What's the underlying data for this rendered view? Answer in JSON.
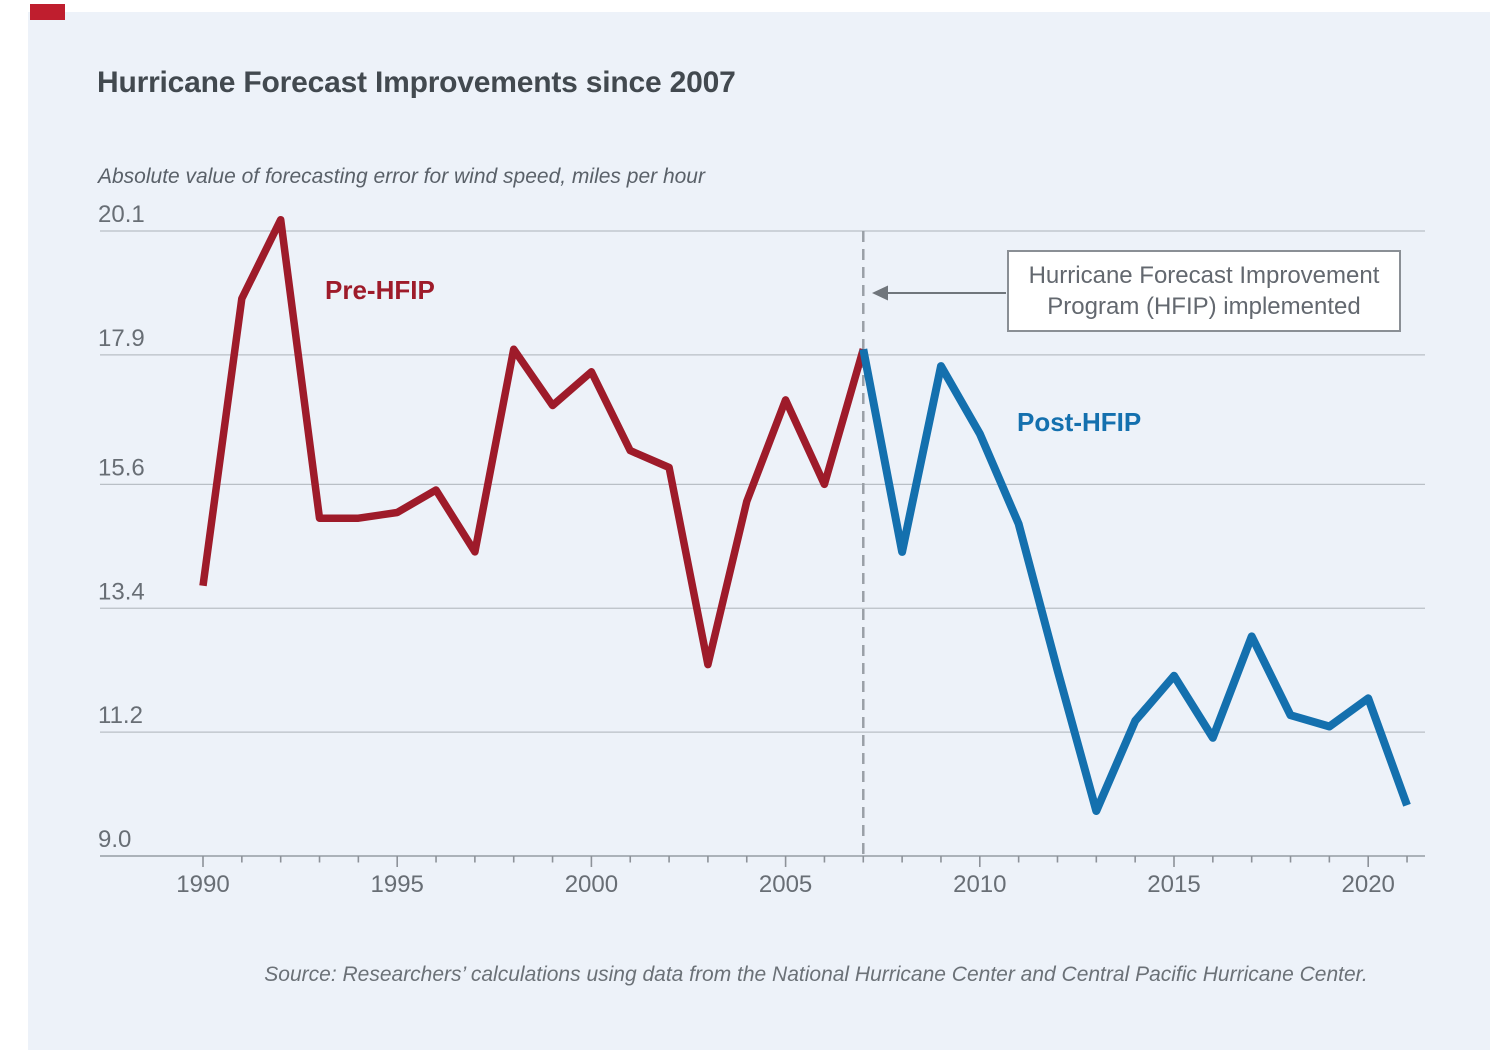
{
  "chart_data": {
    "type": "line",
    "title": "Hurricane Forecast Improvements since 2007",
    "subtitle": "Absolute value of forecasting error for wind speed, miles per hour",
    "source": "Source: Researchers’ calculations using data from the National Hurricane Center and Central Pacific Hurricane Center.",
    "x_range": [
      1990,
      2021
    ],
    "ylim": [
      9.0,
      20.1
    ],
    "y_tick_labels": [
      "20.1",
      "17.9",
      "15.6",
      "13.4",
      "11.2",
      "9.0"
    ],
    "x_tick_labels": [
      "1990",
      "1995",
      "2000",
      "2005",
      "2010",
      "2015",
      "2020"
    ],
    "grid": true,
    "legend_position": "inline-labels",
    "colors": {
      "pre_hfip": "#9e1b2a",
      "post_hfip": "#1470ae",
      "gridline": "#b9bfc6",
      "axis": "#9aa1a8",
      "dashed_event_line": "#9aa0a7",
      "text_gray": "#686e75",
      "panel_background": "#edf2f9",
      "brand_red": "#bf1e2e"
    },
    "series": [
      {
        "name": "Pre-HFIP",
        "color": "#9e1b2a",
        "points": [
          [
            1990,
            13.8
          ],
          [
            1991,
            18.9
          ],
          [
            1992,
            20.3
          ],
          [
            1993,
            15.0
          ],
          [
            1994,
            15.0
          ],
          [
            1995,
            15.1
          ],
          [
            1996,
            15.5
          ],
          [
            1997,
            14.4
          ],
          [
            1998,
            18.0
          ],
          [
            1999,
            17.0
          ],
          [
            2000,
            17.6
          ],
          [
            2001,
            16.2
          ],
          [
            2002,
            15.9
          ],
          [
            2003,
            12.4
          ],
          [
            2004,
            15.3
          ],
          [
            2005,
            17.1
          ],
          [
            2006,
            15.6
          ],
          [
            2007,
            18.0
          ]
        ]
      },
      {
        "name": "Post-HFIP",
        "color": "#1470ae",
        "points": [
          [
            2007,
            18.0
          ],
          [
            2008,
            14.4
          ],
          [
            2009,
            17.7
          ],
          [
            2010,
            16.5
          ],
          [
            2011,
            14.9
          ],
          [
            2012,
            12.3
          ],
          [
            2013,
            9.8
          ],
          [
            2014,
            11.4
          ],
          [
            2015,
            12.2
          ],
          [
            2016,
            11.1
          ],
          [
            2017,
            12.9
          ],
          [
            2018,
            11.5
          ],
          [
            2019,
            11.3
          ],
          [
            2020,
            11.8
          ],
          [
            2021,
            9.9
          ]
        ]
      }
    ],
    "event_line": {
      "x": 2007,
      "style": "dashed"
    },
    "annotation": {
      "line1": "Hurricane Forecast Improvement",
      "line2": "Program (HFIP) implemented"
    }
  }
}
